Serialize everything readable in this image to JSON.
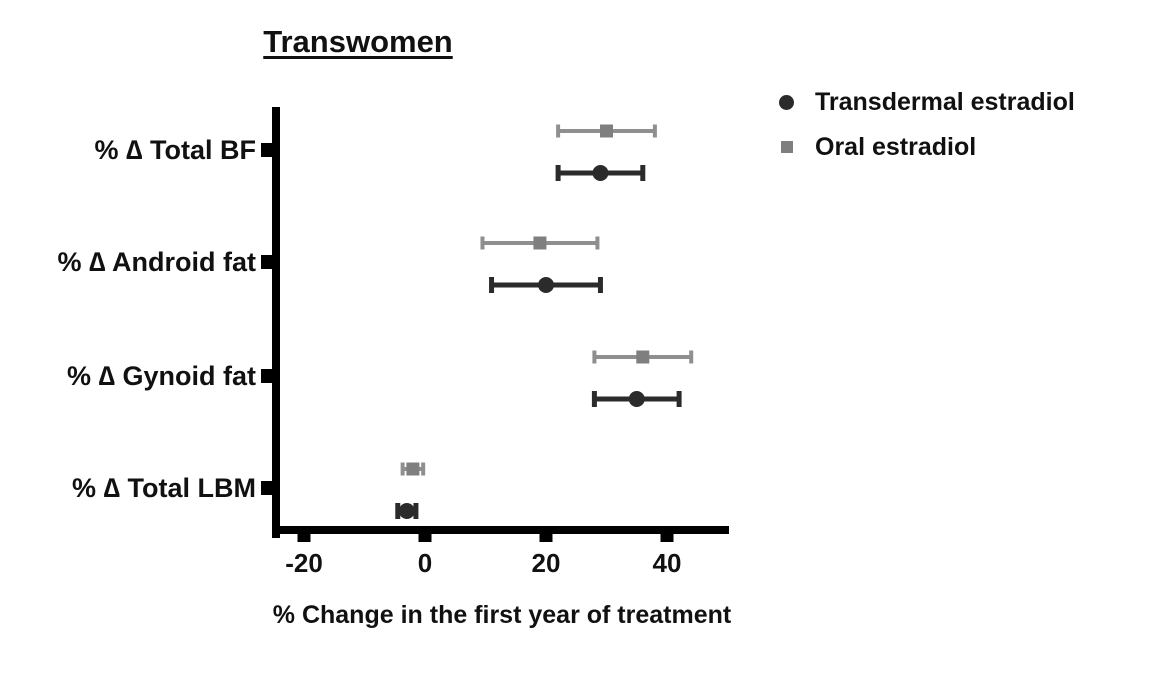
{
  "title": "Transwomen",
  "xlabel": "% Change in the first year of treatment",
  "colors": {
    "axis": "#000000",
    "background": "#ffffff",
    "transdermal": "#2b2b2b",
    "oral": "#8f8f8f",
    "oral_marker": "#7f7f7f",
    "text": "#111111"
  },
  "chart_data": {
    "type": "scatter",
    "subtype": "horizontal-dot-plot-with-error-bars",
    "title": "Transwomen",
    "xlabel": "% Change in the first year of treatment",
    "ylabel": "",
    "grid": false,
    "legend_position": "top-right",
    "xlim": [
      -25,
      50
    ],
    "xticks": [
      -20,
      0,
      20,
      40
    ],
    "xtick_labels": [
      "-20",
      "0",
      "20",
      "40"
    ],
    "categories": [
      "% ∆ Total BF",
      "% ∆ Android fat",
      "% ∆ Gynoid fat",
      "% ∆ Total LBM"
    ],
    "series": [
      {
        "name": "Transdermal estradiol",
        "marker": "circle",
        "color": "#2b2b2b",
        "values": [
          {
            "category": "% ∆ Total BF",
            "mean": 29,
            "lo": 22,
            "hi": 36
          },
          {
            "category": "% ∆ Android fat",
            "mean": 20,
            "lo": 11,
            "hi": 29
          },
          {
            "category": "% ∆ Gynoid fat",
            "mean": 35,
            "lo": 28,
            "hi": 42
          },
          {
            "category": "% ∆ Total LBM",
            "mean": -3,
            "lo": -4.5,
            "hi": -1.5
          }
        ]
      },
      {
        "name": "Oral estradiol",
        "marker": "square",
        "color": "#8f8f8f",
        "marker_color": "#7f7f7f",
        "values": [
          {
            "category": "% ∆ Total BF",
            "mean": 30,
            "lo": 22,
            "hi": 38
          },
          {
            "category": "% ∆ Android fat",
            "mean": 19,
            "lo": 9.5,
            "hi": 28.5
          },
          {
            "category": "% ∆ Gynoid fat",
            "mean": 36,
            "lo": 28,
            "hi": 44
          },
          {
            "category": "% ∆ Total LBM",
            "mean": -2,
            "lo": -3.7,
            "hi": -0.3
          }
        ]
      }
    ]
  }
}
